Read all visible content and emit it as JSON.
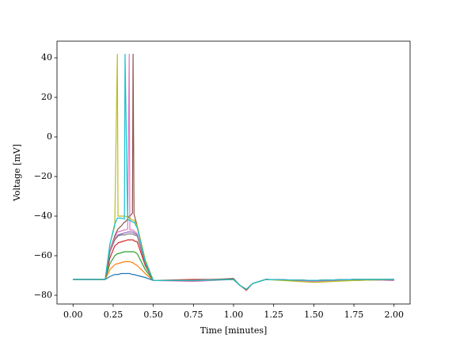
{
  "chart_data": {
    "type": "line",
    "x_label": "Time [minutes]",
    "y_label": "Voltage [mV]",
    "x": [
      0,
      0.2,
      0.23,
      0.26,
      0.276,
      0.28,
      0.3,
      0.32,
      0.324,
      0.34,
      0.35,
      0.354,
      0.37,
      0.374,
      0.38,
      0.4,
      0.45,
      0.5,
      0.75,
      1.0,
      1.04,
      1.08,
      1.12,
      1.2,
      1.5,
      1.75,
      2.0
    ],
    "xlim": [
      -0.1,
      2.1
    ],
    "xticks": [
      {
        "value": 0,
        "label": "0.00"
      },
      {
        "value": 0.25,
        "label": "0.25"
      },
      {
        "value": 0.5,
        "label": "0.50"
      },
      {
        "value": 0.75,
        "label": "0.75"
      },
      {
        "value": 1,
        "label": "1.00"
      },
      {
        "value": 1.25,
        "label": "1.25"
      },
      {
        "value": 1.5,
        "label": "1.50"
      },
      {
        "value": 1.75,
        "label": "1.75"
      },
      {
        "value": 2,
        "label": "2.00"
      }
    ],
    "ylim": [
      -84.4,
      48.4
    ],
    "yticks": [
      {
        "value": -80,
        "label": "−80"
      },
      {
        "value": -60,
        "label": "−60"
      },
      {
        "value": -40,
        "label": "−40"
      },
      {
        "value": -20,
        "label": "−20"
      },
      0,
      20,
      40
    ],
    "series": [
      {
        "color": "#1f77b4",
        "values": [
          -72,
          -72,
          -70.5,
          -69.5,
          -69.5,
          -69.5,
          -69,
          -69,
          -69,
          -69,
          -69,
          -69,
          -69.5,
          -69.5,
          -69.5,
          -70,
          -71,
          -72.5,
          -72.5,
          -72,
          -75,
          -77,
          -74,
          -72,
          -72.5,
          -72,
          -72
        ]
      },
      {
        "color": "#ff7f0e",
        "values": [
          -72,
          -72,
          -67,
          -64.5,
          -64,
          -64,
          -63.5,
          -63,
          -63,
          -63,
          -63,
          -63,
          -63.5,
          -63.5,
          -64,
          -65,
          -69,
          -72.5,
          -72.5,
          -72,
          -75,
          -77,
          -74,
          -72,
          -73,
          -72.5,
          -72
        ]
      },
      {
        "color": "#2ca02c",
        "values": [
          -72,
          -72,
          -64,
          -60,
          -59,
          -59,
          -58.5,
          -58,
          -58,
          -58,
          -58,
          -58,
          -58,
          -58,
          -58,
          -59,
          -67,
          -72.5,
          -72.5,
          -72,
          -75,
          -77,
          -74,
          -72,
          -72.5,
          -72,
          -72
        ]
      },
      {
        "color": "#d62728",
        "values": [
          -72,
          -72,
          -61,
          -55,
          -54,
          -53.5,
          -53,
          -52.5,
          -52.5,
          -52,
          -52,
          -52,
          -52,
          -52,
          -52.5,
          -53,
          -65,
          -72.5,
          -72,
          -72,
          -75,
          -77.5,
          -74,
          -72,
          -72.5,
          -72,
          -72.5
        ]
      },
      {
        "color": "#9467bd",
        "values": [
          -72,
          -72,
          -58,
          -52,
          -50,
          -49.5,
          -49,
          -48.5,
          -48.5,
          -48,
          -48,
          -48,
          -48,
          -48,
          -48.5,
          -49.5,
          -64,
          -72.5,
          -72.5,
          -72,
          -75,
          -77,
          -74,
          -72,
          -72.5,
          -72.5,
          -72
        ]
      },
      {
        "color": "#8c564b",
        "values": [
          -72,
          -72,
          -57,
          -50,
          -47,
          -46.5,
          -45,
          -43,
          -43,
          -41.5,
          -40,
          -40,
          -38.5,
          42,
          -39,
          -45,
          -63,
          -72.5,
          -72.5,
          -71.5,
          -75,
          -77,
          -74,
          -72,
          -72.5,
          -72,
          -72
        ]
      },
      {
        "color": "#e377c2",
        "values": [
          -72,
          -72,
          -57,
          -51,
          -48,
          -48,
          -47.5,
          -47,
          -47,
          -46.5,
          42,
          -47,
          -47,
          -47,
          -47.5,
          -49,
          -64,
          -72.5,
          -73,
          -72,
          -75,
          -77,
          -74,
          -72,
          -73,
          -72,
          -72.5
        ]
      },
      {
        "color": "#7f7f7f",
        "values": [
          -72,
          -72,
          -58,
          -52,
          -50.5,
          -50,
          -49.5,
          -49.5,
          -49.5,
          -49,
          -49,
          -49,
          -49,
          -49,
          -49.5,
          -50,
          -64,
          -72.5,
          -72.5,
          -72,
          -75,
          -77,
          -74,
          -72,
          -72.5,
          -72,
          -72
        ]
      },
      {
        "color": "#bcbd22",
        "values": [
          -72,
          -72,
          -54,
          -45,
          42,
          -40,
          -40,
          -40,
          -40,
          -40.5,
          -41,
          -41,
          -42,
          -42,
          -42,
          -45,
          -62,
          -72.5,
          -72.5,
          -72,
          -75,
          -77,
          -74,
          -72,
          -73.5,
          -72.5,
          -72
        ]
      },
      {
        "color": "#17becf",
        "values": [
          -72,
          -72,
          -54,
          -44,
          -41,
          -41,
          -41,
          -41.5,
          42,
          -42,
          -42,
          -42,
          -43,
          -43,
          -43,
          -46,
          -63,
          -72.5,
          -72.5,
          -72,
          -75,
          -77,
          -74,
          -72,
          -72.5,
          -72,
          -72
        ]
      }
    ]
  }
}
